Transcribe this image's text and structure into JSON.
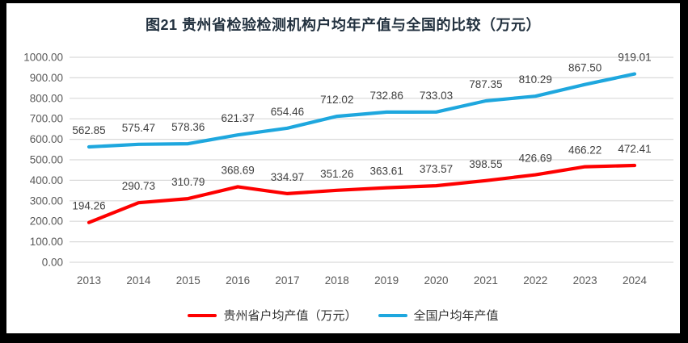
{
  "colors": {
    "frame": "#000000",
    "canvas": "#ffffff",
    "grid": "#d9d9d9",
    "axis_text": "#595959",
    "label_text": "#404040",
    "title_text": "#22313f"
  },
  "chart_data": {
    "type": "line",
    "title": "图21 贵州省检验检测机构户均年产值与全国的比较（万元）",
    "categories": [
      "2013",
      "2014",
      "2015",
      "2016",
      "2017",
      "2018",
      "2019",
      "2020",
      "2021",
      "2022",
      "2023",
      "2024"
    ],
    "series": [
      {
        "name": "贵州省户均产值（万元）",
        "color": "#fe0000",
        "values": [
          194.26,
          290.73,
          310.79,
          368.69,
          334.97,
          351.26,
          363.61,
          373.57,
          398.55,
          426.69,
          466.22,
          472.41
        ]
      },
      {
        "name": "全国户均年产值",
        "color": "#1ea7de",
        "values": [
          562.85,
          575.47,
          578.36,
          621.37,
          654.46,
          712.02,
          732.86,
          733.03,
          787.35,
          810.29,
          867.5,
          919.01
        ]
      }
    ],
    "ylim": [
      0,
      1000
    ],
    "ytick_step": 100,
    "ytick_decimals": 2,
    "grid": true,
    "legend_position": "bottom",
    "data_labels": true
  }
}
